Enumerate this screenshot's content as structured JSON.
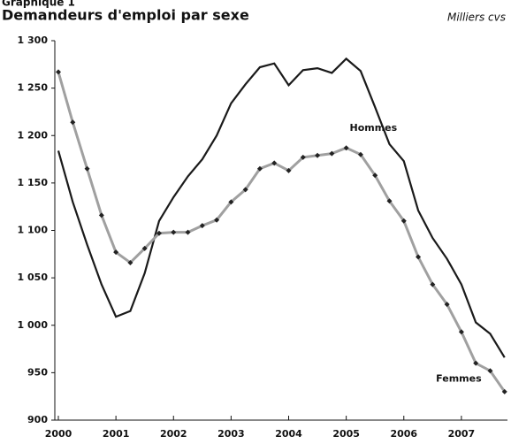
{
  "chart_data": {
    "type": "line",
    "supertitle": "Graphique 1",
    "title": "Demandeurs d'emploi par sexe",
    "unit": "Milliers cvs",
    "x": [
      2000,
      2000.25,
      2000.5,
      2000.75,
      2001,
      2001.25,
      2001.5,
      2001.75,
      2002,
      2002.25,
      2002.5,
      2002.75,
      2003,
      2003.25,
      2003.5,
      2003.75,
      2004,
      2004.25,
      2004.5,
      2004.75,
      2005,
      2005.25,
      2005.5,
      2005.75,
      2006,
      2006.25,
      2006.5,
      2006.75,
      2007,
      2007.25,
      2007.5,
      2007.75
    ],
    "series": [
      {
        "name": "Hommes",
        "color": "#1a1a1a",
        "values": [
          1184,
          1130,
          1085,
          1043,
          1009,
          1015,
          1055,
          1110,
          1135,
          1157,
          1175,
          1200,
          1234,
          1254,
          1272,
          1276,
          1253,
          1269,
          1271,
          1266,
          1281,
          1268,
          1230,
          1191,
          1173,
          1121,
          1092,
          1070,
          1043,
          1003,
          991,
          966
        ]
      },
      {
        "name": "Femmes",
        "color": "#a0a0a0",
        "marker_color": "#222222",
        "values": [
          1267,
          1214,
          1165,
          1116,
          1077,
          1066,
          1081,
          1097,
          1098,
          1098,
          1105,
          1111,
          1130,
          1143,
          1165,
          1171,
          1163,
          1177,
          1179,
          1181,
          1187,
          1180,
          1158,
          1131,
          1110,
          1072,
          1043,
          1022,
          993,
          960,
          952,
          930
        ]
      }
    ],
    "xlim": [
      2000,
      2007.8
    ],
    "xticks": [
      2000,
      2001,
      2002,
      2003,
      2004,
      2005,
      2006,
      2007
    ],
    "ylim": [
      900,
      1300
    ],
    "yticks": [
      900,
      950,
      {
        "value": 1000,
        "label": "1 000"
      },
      {
        "value": 1050,
        "label": "1 050"
      },
      {
        "value": 1100,
        "label": "1 100"
      },
      {
        "value": 1150,
        "label": "1 150"
      },
      {
        "value": 1200,
        "label": "1 200"
      },
      {
        "value": 1250,
        "label": "1 250"
      },
      {
        "value": 1300,
        "label": "1 300"
      }
    ],
    "grid": false
  }
}
